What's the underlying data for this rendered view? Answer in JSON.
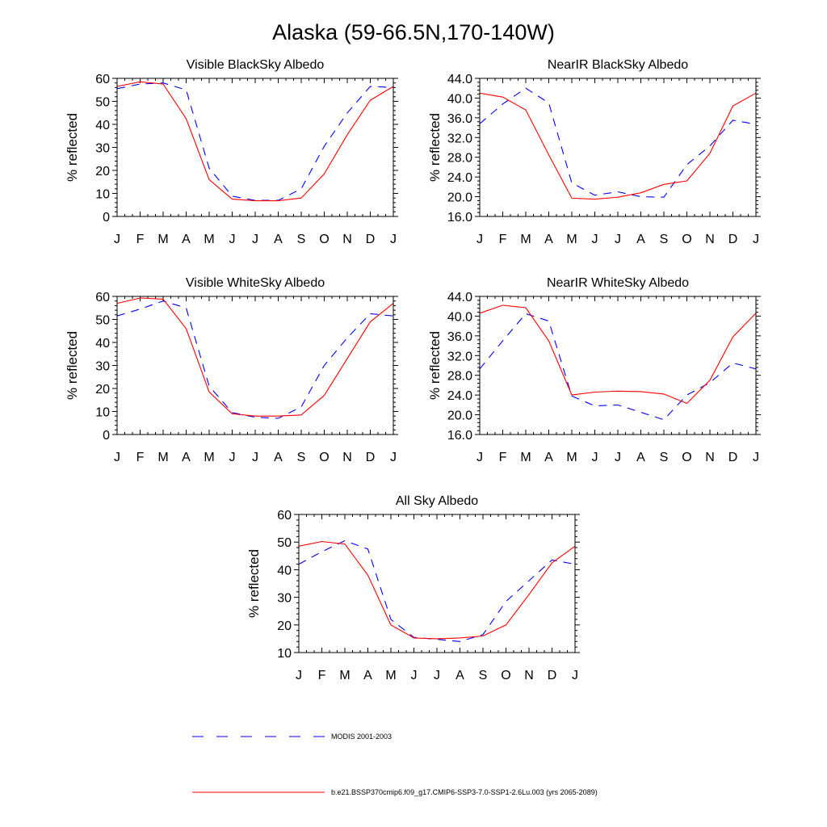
{
  "title": "Alaska (59-66.5N,170-140W)",
  "months": [
    "J",
    "F",
    "M",
    "A",
    "M",
    "J",
    "J",
    "A",
    "S",
    "O",
    "N",
    "D",
    "J"
  ],
  "legend": [
    {
      "label": "MODIS 2001-2003",
      "color": "#0000ff",
      "dash": "dash"
    },
    {
      "label": "b.e21.BSSP370cmip6.f09_g17.CMIP6-SSP3-7.0-SSP1-2.6Lu.003 (yrs 2065-2089)",
      "color": "#ff0000",
      "dash": "solid"
    }
  ],
  "chart_data": [
    {
      "type": "line",
      "title": "Visible BlackSky Albedo",
      "ylabel": "% reflected",
      "categories": [
        "J",
        "F",
        "M",
        "A",
        "M",
        "J",
        "J",
        "A",
        "S",
        "O",
        "N",
        "D",
        "J"
      ],
      "ylim": [
        0,
        60
      ],
      "yticks": [
        0,
        10,
        20,
        30,
        40,
        50,
        60
      ],
      "ytick_labels": [
        "0",
        "10",
        "20",
        "30",
        "40",
        "50",
        "60"
      ],
      "series": [
        {
          "name": "MODIS 2001-2003",
          "color": "#0000ff",
          "dash": "dash",
          "values": [
            55.5,
            57.5,
            58.0,
            55.0,
            21.0,
            8.8,
            7.0,
            7.0,
            12.0,
            30.5,
            45.0,
            56.5,
            56.0
          ]
        },
        {
          "name": "b.e21.BSSP370cmip6.f09_g17.CMIP6-SSP3-7.0-SSP1-2.6Lu.003 (yrs 2065-2089)",
          "color": "#ff0000",
          "dash": "solid",
          "values": [
            56.5,
            58.5,
            57.5,
            42.5,
            16.0,
            7.5,
            6.8,
            6.8,
            8.0,
            18.5,
            35.5,
            50.5,
            56.5
          ]
        }
      ]
    },
    {
      "type": "line",
      "title": "NearIR BlackSky Albedo",
      "ylabel": "% reflected",
      "categories": [
        "J",
        "F",
        "M",
        "A",
        "M",
        "J",
        "J",
        "A",
        "S",
        "O",
        "N",
        "D",
        "J"
      ],
      "ylim": [
        16.0,
        44.0
      ],
      "yticks": [
        16,
        20,
        24,
        28,
        32,
        36,
        40,
        44
      ],
      "ytick_labels": [
        "16.0",
        "20.0",
        "24.0",
        "28.0",
        "32.0",
        "36.0",
        "40.0",
        "44.0"
      ],
      "series": [
        {
          "name": "MODIS 2001-2003",
          "color": "#0000ff",
          "dash": "dash",
          "values": [
            34.8,
            38.8,
            42.0,
            39.0,
            22.8,
            20.3,
            21.0,
            20.0,
            19.9,
            26.5,
            30.3,
            35.5,
            34.7
          ]
        },
        {
          "name": "b.e21.BSSP370cmip6.f09_g17.CMIP6-SSP3-7.0-SSP1-2.6Lu.003 (yrs 2065-2089)",
          "color": "#ff0000",
          "dash": "solid",
          "values": [
            41.0,
            40.2,
            37.6,
            28.5,
            19.7,
            19.5,
            19.9,
            20.8,
            22.5,
            23.2,
            28.8,
            38.4,
            41.0
          ]
        }
      ]
    },
    {
      "type": "line",
      "title": "Visible WhiteSky Albedo",
      "ylabel": "% reflected",
      "categories": [
        "J",
        "F",
        "M",
        "A",
        "M",
        "J",
        "J",
        "A",
        "S",
        "O",
        "N",
        "D",
        "J"
      ],
      "ylim": [
        0,
        60
      ],
      "yticks": [
        0,
        10,
        20,
        30,
        40,
        50,
        60
      ],
      "ytick_labels": [
        "0",
        "10",
        "20",
        "30",
        "40",
        "50",
        "60"
      ],
      "series": [
        {
          "name": "MODIS 2001-2003",
          "color": "#0000ff",
          "dash": "dash",
          "values": [
            51.5,
            54.5,
            58.0,
            55.0,
            21.0,
            9.5,
            7.5,
            7.0,
            12.0,
            30.0,
            42.0,
            52.5,
            51.5
          ]
        },
        {
          "name": "b.e21.BSSP370cmip6.f09_g17.CMIP6-SSP3-7.0-SSP1-2.6Lu.003 (yrs 2065-2089)",
          "color": "#ff0000",
          "dash": "solid",
          "values": [
            57.0,
            59.3,
            58.8,
            46.0,
            18.5,
            9.0,
            8.0,
            8.0,
            8.5,
            17.0,
            33.0,
            49.0,
            57.0
          ]
        }
      ]
    },
    {
      "type": "line",
      "title": "NearIR WhiteSky Albedo",
      "ylabel": "% reflected",
      "categories": [
        "J",
        "F",
        "M",
        "A",
        "M",
        "J",
        "J",
        "A",
        "S",
        "O",
        "N",
        "D",
        "J"
      ],
      "ylim": [
        16.0,
        44.0
      ],
      "yticks": [
        16,
        20,
        24,
        28,
        32,
        36,
        40,
        44
      ],
      "ytick_labels": [
        "16.0",
        "20.0",
        "24.0",
        "28.0",
        "32.0",
        "36.0",
        "40.0",
        "44.0"
      ],
      "series": [
        {
          "name": "MODIS 2001-2003",
          "color": "#0000ff",
          "dash": "dash",
          "values": [
            29.3,
            35.0,
            40.5,
            39.0,
            23.8,
            21.8,
            22.0,
            20.5,
            19.0,
            24.0,
            26.5,
            30.5,
            29.3
          ]
        },
        {
          "name": "b.e21.BSSP370cmip6.f09_g17.CMIP6-SSP3-7.0-SSP1-2.6Lu.003 (yrs 2065-2089)",
          "color": "#ff0000",
          "dash": "solid",
          "values": [
            40.6,
            42.2,
            41.7,
            35.0,
            24.0,
            24.6,
            24.8,
            24.7,
            24.2,
            22.3,
            27.0,
            35.8,
            40.6
          ]
        }
      ]
    },
    {
      "type": "line",
      "title": "All Sky Albedo",
      "ylabel": "% reflected",
      "categories": [
        "J",
        "F",
        "M",
        "A",
        "M",
        "J",
        "J",
        "A",
        "S",
        "O",
        "N",
        "D",
        "J"
      ],
      "ylim": [
        10,
        60
      ],
      "yticks": [
        10,
        20,
        30,
        40,
        50,
        60
      ],
      "ytick_labels": [
        "10",
        "20",
        "30",
        "40",
        "50",
        "60"
      ],
      "series": [
        {
          "name": "MODIS 2001-2003",
          "color": "#0000ff",
          "dash": "dash",
          "values": [
            42.0,
            46.5,
            50.5,
            47.5,
            22.0,
            15.5,
            14.8,
            14.0,
            16.5,
            28.5,
            36.0,
            43.5,
            42.0
          ]
        },
        {
          "name": "b.e21.BSSP370cmip6.f09_g17.CMIP6-SSP3-7.0-SSP1-2.6Lu.003 (yrs 2065-2089)",
          "color": "#ff0000",
          "dash": "solid",
          "values": [
            48.5,
            50.2,
            49.3,
            38.0,
            20.0,
            15.3,
            15.0,
            15.3,
            16.0,
            20.0,
            31.0,
            42.5,
            48.5
          ]
        }
      ]
    }
  ]
}
